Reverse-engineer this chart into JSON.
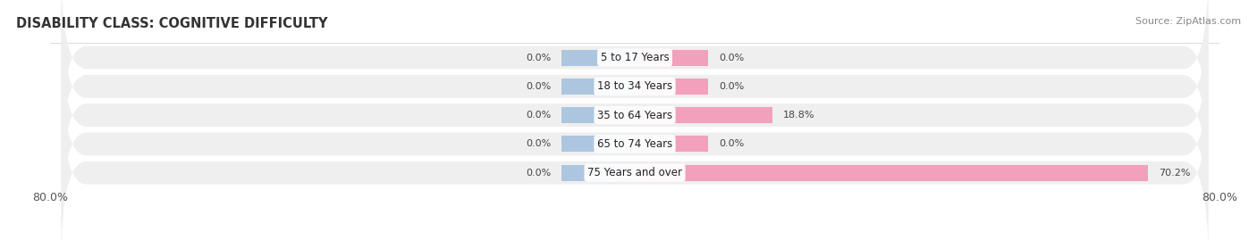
{
  "title": "DISABILITY CLASS: COGNITIVE DIFFICULTY",
  "source": "Source: ZipAtlas.com",
  "categories": [
    "5 to 17 Years",
    "18 to 34 Years",
    "35 to 64 Years",
    "65 to 74 Years",
    "75 Years and over"
  ],
  "male_values": [
    0.0,
    0.0,
    0.0,
    0.0,
    0.0
  ],
  "female_values": [
    0.0,
    0.0,
    18.8,
    0.0,
    70.2
  ],
  "male_color": "#adc6e0",
  "female_color": "#f2a0bb",
  "row_bg_color": "#efefef",
  "xlim_left": -80.0,
  "xlim_right": 80.0,
  "male_stub": -10.0,
  "female_stub": 10.0,
  "title_fontsize": 10.5,
  "source_fontsize": 8,
  "label_fontsize": 8,
  "category_fontsize": 8.5,
  "tick_fontsize": 9,
  "bar_height": 0.68
}
